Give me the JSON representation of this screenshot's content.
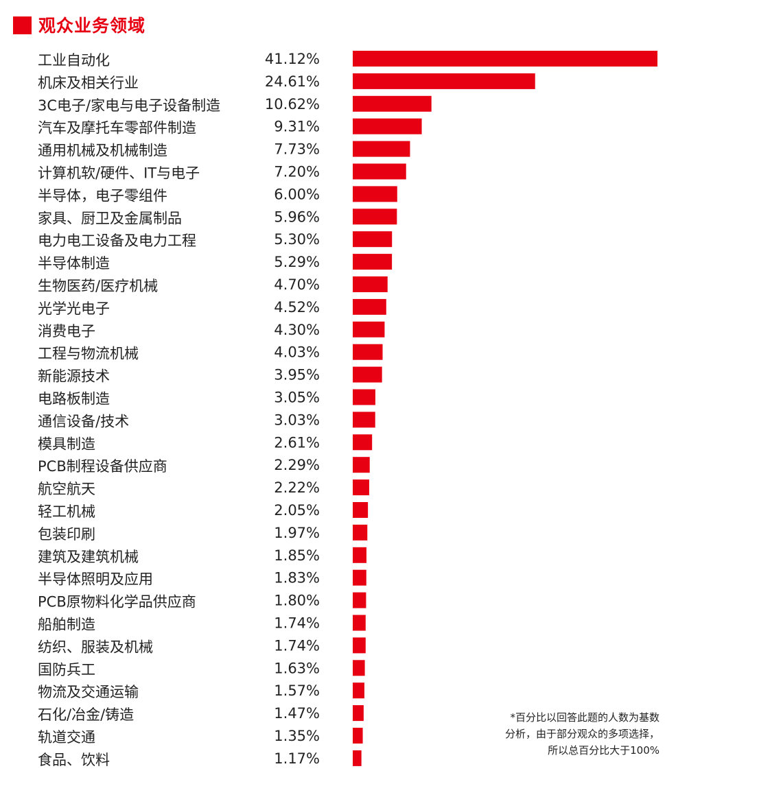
{
  "chart_data": {
    "type": "bar",
    "orientation": "horizontal",
    "title": "观众业务领域",
    "categories": [
      "工业自动化",
      "机床及相关行业",
      "3C电子/家电与电子设备制造",
      "汽车及摩托车零部件制造",
      "通用机械及机械制造",
      "计算机软/硬件、IT与电子",
      "半导体，电子零组件",
      "家具、厨卫及金属制品",
      "电力电工设备及电力工程",
      "半导体制造",
      "生物医药/医疗机械",
      "光学光电子",
      "消费电子",
      "工程与物流机械",
      "新能源技术",
      "电路板制造",
      "通信设备/技术",
      "模具制造",
      "PCB制程设备供应商",
      "航空航天",
      "轻工机械",
      "包装印刷",
      "建筑及建筑机械",
      "半导体照明及应用",
      "PCB原物料化学品供应商",
      "船舶制造",
      "纺织、服装及机械",
      "国防兵工",
      "物流及交通运输",
      "石化/冶金/铸造",
      "轨道交通",
      "食品、饮料"
    ],
    "values": [
      41.12,
      24.61,
      10.62,
      9.31,
      7.73,
      7.2,
      6.0,
      5.96,
      5.3,
      5.29,
      4.7,
      4.52,
      4.3,
      4.03,
      3.95,
      3.05,
      3.03,
      2.61,
      2.29,
      2.22,
      2.05,
      1.97,
      1.85,
      1.83,
      1.8,
      1.74,
      1.74,
      1.63,
      1.57,
      1.47,
      1.35,
      1.17
    ],
    "value_labels": [
      "41.12%",
      "24.61%",
      "10.62%",
      "9.31%",
      "7.73%",
      "7.20%",
      "6.00%",
      "5.96%",
      "5.30%",
      "5.29%",
      "4.70%",
      "4.52%",
      "4.30%",
      "4.03%",
      "3.95%",
      "3.05%",
      "3.03%",
      "2.61%",
      "2.29%",
      "2.22%",
      "2.05%",
      "1.97%",
      "1.85%",
      "1.83%",
      "1.80%",
      "1.74%",
      "1.74%",
      "1.63%",
      "1.57%",
      "1.47%",
      "1.35%",
      "1.17%"
    ],
    "xlim": [
      0,
      42
    ],
    "grid": false,
    "bar_color": "#e60012"
  },
  "note": {
    "lines": [
      "*百分比以回答此题的人数为基数",
      "分析，由于部分观众的多项选择，",
      "所以总百分比大于100%"
    ]
  }
}
